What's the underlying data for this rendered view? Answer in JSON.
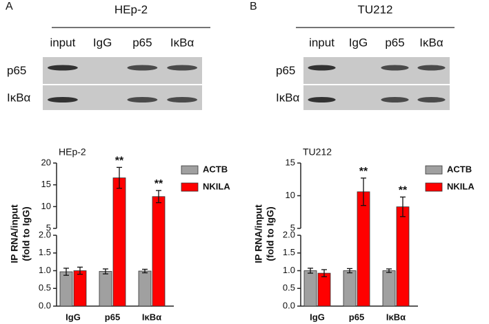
{
  "panels": [
    {
      "label": "A",
      "title": "HEp-2",
      "lanes": [
        "input",
        "IgG",
        "p65",
        "IκBα"
      ],
      "rows": [
        "p65",
        "IκBα"
      ]
    },
    {
      "label": "B",
      "title": "TU212",
      "lanes": [
        "input",
        "IgG",
        "p65",
        "IκBα"
      ],
      "rows": [
        "p65",
        "IκBα"
      ]
    }
  ],
  "chart_data": [
    {
      "type": "bar",
      "title": "HEp-2",
      "y_label": [
        "IP RNA/input",
        "(fold to IgG)"
      ],
      "categories": [
        "IgG",
        "p65",
        "IκBα"
      ],
      "series": [
        {
          "name": "ACTB",
          "color": "#a0a0a0",
          "values": [
            0.97,
            0.98,
            0.99
          ],
          "errors": [
            0.1,
            0.07,
            0.05
          ]
        },
        {
          "name": "NKILA",
          "color": "#ff0000",
          "values": [
            1.0,
            16.6,
            12.3
          ],
          "errors": [
            0.1,
            2.4,
            1.4
          ]
        }
      ],
      "y_segments": [
        {
          "ylim": [
            0,
            2
          ],
          "yticks": [
            {
              "value": 0,
              "label": "0.0"
            },
            {
              "value": 0.5,
              "label": "0.5"
            },
            {
              "value": 1,
              "label": "1.0"
            },
            {
              "value": 1.5,
              "label": "1.5"
            },
            {
              "value": 2,
              "label": "2.0"
            }
          ]
        },
        {
          "ylim": [
            5,
            20
          ],
          "yticks": [
            5,
            10,
            15,
            20
          ]
        }
      ],
      "annotations": [
        {
          "x": "p65",
          "text": "**"
        },
        {
          "x": "IκBα",
          "text": "**"
        }
      ]
    },
    {
      "type": "bar",
      "title": "TU212",
      "y_label": [
        "IP RNA/input",
        "(fold to IgG)"
      ],
      "categories": [
        "IgG",
        "p65",
        "IκBα"
      ],
      "series": [
        {
          "name": "ACTB",
          "color": "#a0a0a0",
          "values": [
            1.0,
            1.0,
            1.0
          ],
          "errors": [
            0.07,
            0.06,
            0.05
          ]
        },
        {
          "name": "NKILA",
          "color": "#ff0000",
          "values": [
            0.93,
            10.6,
            8.3
          ],
          "errors": [
            0.1,
            2.1,
            1.5
          ]
        }
      ],
      "y_segments": [
        {
          "ylim": [
            0,
            2
          ],
          "yticks": [
            {
              "value": 0,
              "label": "0.0"
            },
            {
              "value": 0.5,
              "label": "0.5"
            },
            {
              "value": 1,
              "label": "1.0"
            },
            {
              "value": 1.5,
              "label": "1.5"
            },
            {
              "value": 2,
              "label": "2.0"
            }
          ]
        },
        {
          "ylim": [
            5,
            15
          ],
          "yticks": [
            5,
            10,
            15
          ]
        }
      ],
      "annotations": [
        {
          "x": "p65",
          "text": "**"
        },
        {
          "x": "IκBα",
          "text": "**"
        }
      ]
    }
  ]
}
